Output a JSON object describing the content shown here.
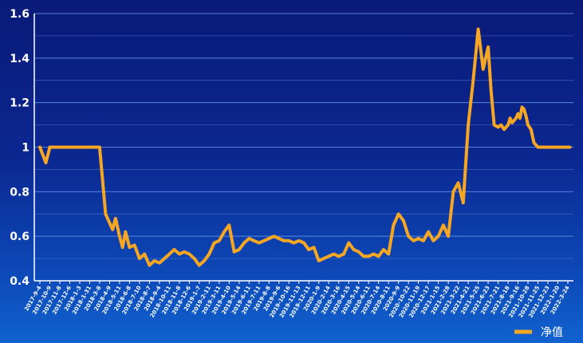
{
  "chart_data": {
    "type": "line",
    "title": "",
    "xlabel": "",
    "ylabel": "",
    "ylim": [
      0.4,
      1.6
    ],
    "yticks": [
      "0.4",
      "0.6",
      "0.8",
      "1",
      "1.2",
      "1.4",
      "1.6"
    ],
    "grid": true,
    "legend_position": "bottom-right",
    "colors": {
      "line": "#f5a623",
      "grid": "#5f8fe0",
      "axis": "#ffffff"
    },
    "x_tick_labels": [
      "2017-9-4",
      "2017-10-9",
      "2017-11-8",
      "2017-12-6",
      "2018-1-3",
      "2018-1-31",
      "2018-3-8",
      "2018-4-9",
      "2018-5-11",
      "2018-6-8",
      "2018-7-10",
      "2018-8-7",
      "2018-9-4",
      "2018-10-11",
      "2018-11-8",
      "2018-12-6",
      "2019-1-7",
      "2019-2-11",
      "2019-3-11",
      "2019-4-10",
      "2019-5-14",
      "2019-6-11",
      "2019-7-11",
      "2019-8-8",
      "2019-9-6",
      "2019-10-16",
      "2019-11-13",
      "2019-12-11",
      "2020-1-9",
      "2020-2-14",
      "2020-3-16",
      "2020-4-15",
      "2020-5-14",
      "2020-6-11",
      "2020-7-14",
      "2020-8-11",
      "2020-9-9",
      "2020-10-22",
      "2020-11-19",
      "2020-12-17",
      "2021-1-15",
      "2021-2-28",
      "2021-3-22",
      "2021-4-21",
      "2021-5-25",
      "2021-6-23",
      "2021-7-21",
      "2021-8-18",
      "2021-9-16",
      "2021-10-28",
      "2021-11-25",
      "2021-12-23",
      "2022-1-20",
      "2022-3-24"
    ],
    "series": [
      {
        "name": "净值",
        "x": [
          0,
          0.6,
          1,
          1.6,
          2,
          3,
          4,
          5,
          6,
          6.6,
          7,
          7.3,
          7.6,
          8,
          8.3,
          8.6,
          9,
          9.5,
          10,
          10.5,
          11,
          11.5,
          12,
          12.5,
          13,
          13.5,
          14,
          14.5,
          15,
          15.5,
          16,
          16.5,
          17,
          17.5,
          18,
          18.5,
          19,
          19.5,
          20,
          20.5,
          21,
          21.5,
          22,
          22.5,
          23,
          23.5,
          24,
          24.5,
          25,
          25.5,
          26,
          26.5,
          27,
          27.5,
          28,
          28.5,
          29,
          29.5,
          30,
          30.5,
          31,
          31.5,
          32,
          32.5,
          33,
          33.5,
          34,
          34.5,
          35,
          35.5,
          36,
          36.5,
          37,
          37.5,
          38,
          38.5,
          39,
          39.5,
          40,
          40.5,
          41,
          41.5,
          42,
          42.5,
          43,
          43.5,
          44,
          44.5,
          45,
          45.3,
          45.6,
          46,
          46.3,
          46.6,
          47,
          47.2,
          47.4,
          47.6,
          47.8,
          48,
          48.2,
          48.4,
          48.6,
          48.8,
          49,
          49.3,
          49.6,
          50,
          50.5,
          51,
          51.5,
          52,
          52.2,
          52.5,
          52.8,
          53,
          53.2
        ],
        "values": [
          1.0,
          0.93,
          1.0,
          1.0,
          1.0,
          1.0,
          1.0,
          1.0,
          1.0,
          0.7,
          0.66,
          0.63,
          0.68,
          0.6,
          0.55,
          0.62,
          0.55,
          0.56,
          0.5,
          0.52,
          0.47,
          0.49,
          0.48,
          0.5,
          0.52,
          0.54,
          0.52,
          0.53,
          0.52,
          0.5,
          0.47,
          0.49,
          0.52,
          0.57,
          0.58,
          0.62,
          0.65,
          0.53,
          0.54,
          0.57,
          0.59,
          0.58,
          0.57,
          0.58,
          0.59,
          0.6,
          0.59,
          0.58,
          0.58,
          0.57,
          0.58,
          0.57,
          0.54,
          0.55,
          0.49,
          0.5,
          0.51,
          0.52,
          0.51,
          0.52,
          0.57,
          0.54,
          0.53,
          0.51,
          0.51,
          0.52,
          0.51,
          0.54,
          0.52,
          0.65,
          0.7,
          0.67,
          0.6,
          0.58,
          0.59,
          0.58,
          0.62,
          0.58,
          0.6,
          0.65,
          0.6,
          0.8,
          0.84,
          0.75,
          1.1,
          1.3,
          1.53,
          1.35,
          1.45,
          1.25,
          1.1,
          1.09,
          1.1,
          1.08,
          1.1,
          1.13,
          1.11,
          1.12,
          1.13,
          1.15,
          1.13,
          1.18,
          1.17,
          1.14,
          1.1,
          1.08,
          1.02,
          1.0,
          1.0,
          1.0,
          1.0,
          1.0,
          1.0,
          1.0,
          1.0,
          1.0,
          1.0
        ]
      }
    ]
  }
}
